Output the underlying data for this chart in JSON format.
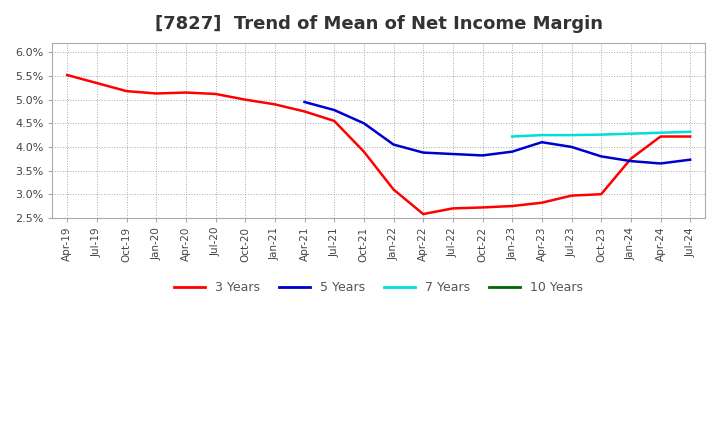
{
  "title": "[7827]  Trend of Mean of Net Income Margin",
  "title_fontsize": 13,
  "ylim": [
    0.025,
    0.062
  ],
  "yticks": [
    0.025,
    0.03,
    0.035,
    0.04,
    0.045,
    0.05,
    0.055,
    0.06
  ],
  "background_color": "#ffffff",
  "plot_bg_color": "#ffffff",
  "grid_color": "#aaaaaa",
  "series": {
    "3 Years": {
      "color": "#ff0000",
      "x_indices": [
        0,
        1,
        2,
        3,
        4,
        5,
        6,
        7,
        8,
        9,
        10,
        11,
        12,
        13,
        14,
        15,
        16,
        17,
        18,
        19,
        20,
        21
      ],
      "values": [
        0.0552,
        0.0535,
        0.0518,
        0.0513,
        0.0515,
        0.0512,
        0.05,
        0.049,
        0.0475,
        0.0455,
        0.039,
        0.031,
        0.0258,
        0.027,
        0.0272,
        0.0275,
        0.0282,
        0.0297,
        0.03,
        0.0375,
        0.0422,
        0.0422
      ]
    },
    "5 Years": {
      "color": "#0000cc",
      "x_indices": [
        8,
        9,
        10,
        11,
        12,
        13,
        14,
        15,
        16,
        17,
        18,
        19,
        20,
        21
      ],
      "values": [
        0.0495,
        0.0478,
        0.045,
        0.0405,
        0.0388,
        0.0385,
        0.0382,
        0.039,
        0.041,
        0.04,
        0.038,
        0.037,
        0.0365,
        0.0373
      ]
    },
    "7 Years": {
      "color": "#00dddd",
      "x_indices": [
        15,
        16,
        17,
        18,
        19,
        20,
        21
      ],
      "values": [
        0.0422,
        0.0425,
        0.0425,
        0.0426,
        0.0428,
        0.043,
        0.0432
      ]
    },
    "10 Years": {
      "color": "#006600",
      "x_indices": [],
      "values": []
    }
  },
  "xtick_labels": [
    "Apr-19",
    "Jul-19",
    "Oct-19",
    "Jan-20",
    "Apr-20",
    "Jul-20",
    "Oct-20",
    "Jan-21",
    "Apr-21",
    "Jul-21",
    "Oct-21",
    "Jan-22",
    "Apr-22",
    "Jul-22",
    "Oct-22",
    "Jan-23",
    "Apr-23",
    "Jul-23",
    "Oct-23",
    "Jan-24",
    "Apr-24",
    "Jul-24"
  ],
  "legend_labels": [
    "3 Years",
    "5 Years",
    "7 Years",
    "10 Years"
  ],
  "legend_colors": [
    "#ff0000",
    "#0000cc",
    "#00dddd",
    "#006600"
  ]
}
